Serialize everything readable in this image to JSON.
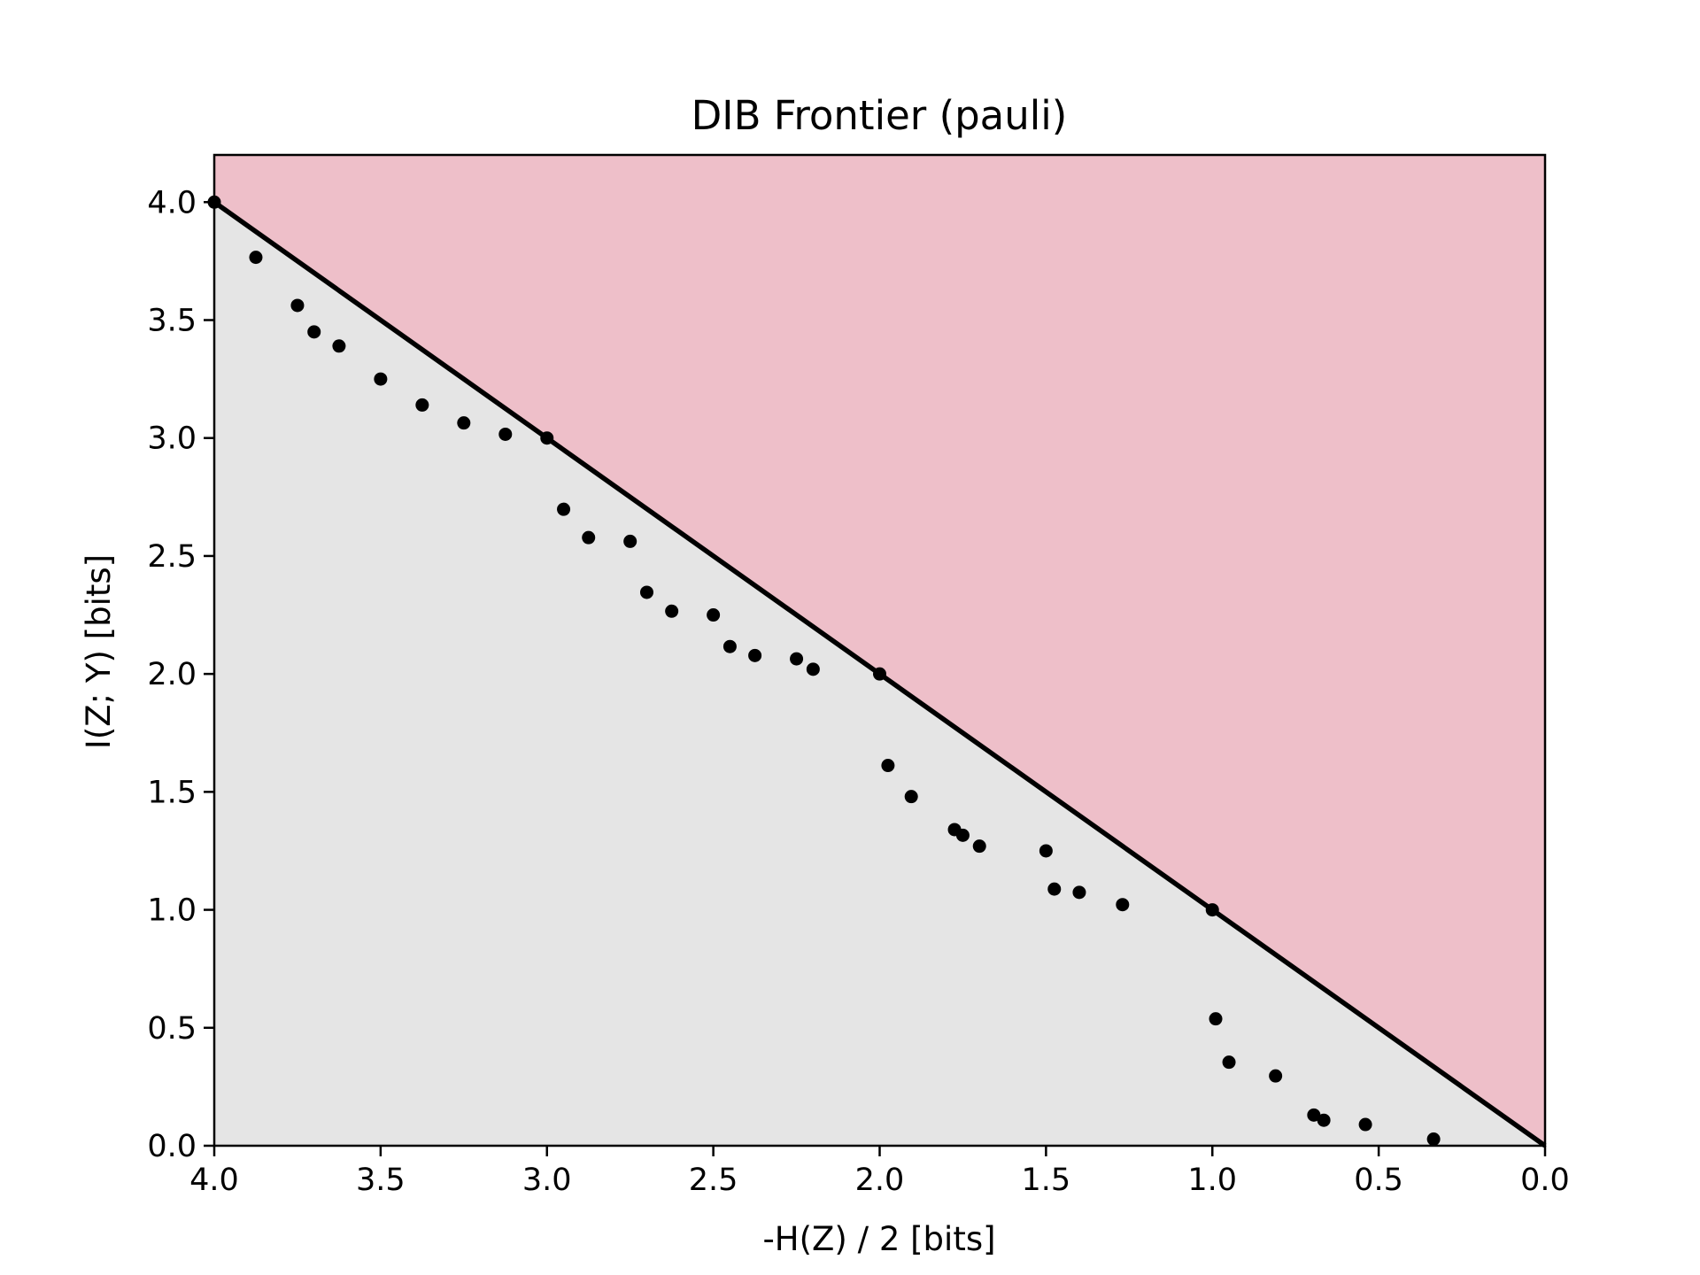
{
  "chart_data": {
    "type": "scatter",
    "title": "DIB Frontier (pauli)",
    "xlabel": "-H(Z) / 2 [bits]",
    "ylabel": "I(Z; Y) [bits]",
    "xlim": [
      4.0,
      0.0
    ],
    "ylim": [
      0.0,
      4.2
    ],
    "x_inverted": true,
    "grid": false,
    "xticks": [
      "4.0",
      "3.5",
      "3.0",
      "2.5",
      "2.0",
      "1.5",
      "1.0",
      "0.5",
      "0.0"
    ],
    "yticks": [
      "0.0",
      "0.5",
      "1.0",
      "1.5",
      "2.0",
      "2.5",
      "3.0",
      "3.5",
      "4.0"
    ],
    "frontier_line": {
      "x": [
        4.0,
        0.0
      ],
      "y": [
        4.0,
        0.0
      ]
    },
    "regions": {
      "above_frontier_color": "#eebfc9",
      "below_frontier_color": "#e5e5e5"
    },
    "marker_color": "#000000",
    "points": [
      [
        4.0,
        4.0
      ],
      [
        3.875,
        3.766
      ],
      [
        3.75,
        3.562
      ],
      [
        3.7,
        3.45
      ],
      [
        3.625,
        3.39
      ],
      [
        3.5,
        3.25
      ],
      [
        3.375,
        3.14
      ],
      [
        3.25,
        3.064
      ],
      [
        3.125,
        3.016
      ],
      [
        3.0,
        3.0
      ],
      [
        2.95,
        2.698
      ],
      [
        2.875,
        2.578
      ],
      [
        2.75,
        2.562
      ],
      [
        2.7,
        2.346
      ],
      [
        2.625,
        2.266
      ],
      [
        2.5,
        2.25
      ],
      [
        2.45,
        2.116
      ],
      [
        2.375,
        2.078
      ],
      [
        2.25,
        2.064
      ],
      [
        2.2,
        2.02
      ],
      [
        2.0,
        2.0
      ],
      [
        1.975,
        1.612
      ],
      [
        1.905,
        1.48
      ],
      [
        1.775,
        1.34
      ],
      [
        1.75,
        1.316
      ],
      [
        1.7,
        1.27
      ],
      [
        1.5,
        1.25
      ],
      [
        1.475,
        1.088
      ],
      [
        1.4,
        1.074
      ],
      [
        1.27,
        1.022
      ],
      [
        1.0,
        1.0
      ],
      [
        0.99,
        0.538
      ],
      [
        0.95,
        0.354
      ],
      [
        0.81,
        0.296
      ],
      [
        0.695,
        0.13
      ],
      [
        0.665,
        0.108
      ],
      [
        0.54,
        0.09
      ],
      [
        0.335,
        0.028
      ]
    ]
  }
}
